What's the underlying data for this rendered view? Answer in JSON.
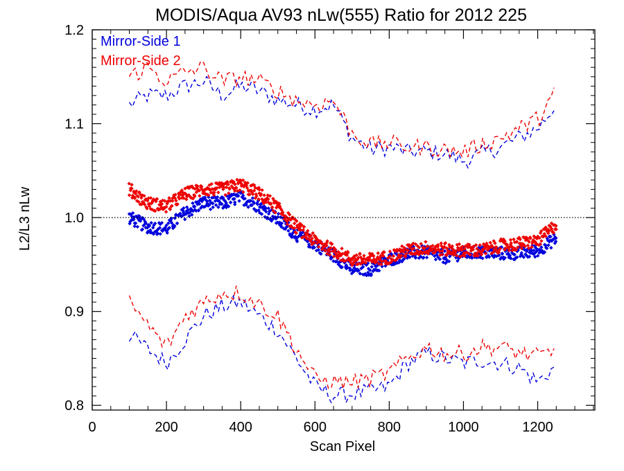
{
  "chart_data": {
    "type": "scatter",
    "title": "MODIS/Aqua AV93 nLw(555) Ratio for 2012 225",
    "xlabel": "Scan Pixel",
    "ylabel": "L2/L3 nLw",
    "xlim": [
      0,
      1354
    ],
    "ylim": [
      0.795,
      1.2
    ],
    "xticks": [
      0,
      200,
      400,
      600,
      800,
      1000,
      1200
    ],
    "yticks": [
      0.8,
      0.9,
      1.0,
      1.1,
      1.2
    ],
    "xtick_labels": [
      "0",
      "200",
      "400",
      "600",
      "800",
      "1000",
      "1200"
    ],
    "ytick_labels": [
      "0.8",
      "0.9",
      "1.0",
      "1.1",
      "1.2"
    ],
    "reference_line": 1.0,
    "legend_position": "top-left",
    "colors": {
      "ms1": "#0000dd",
      "ms2": "#ee0000",
      "axis": "#000000"
    },
    "series": [
      {
        "name": "Mirror-Side 1",
        "color": "#0000dd",
        "x": [
          100,
          150,
          200,
          250,
          300,
          350,
          400,
          450,
          500,
          550,
          600,
          650,
          700,
          750,
          800,
          850,
          900,
          950,
          1000,
          1050,
          1100,
          1150,
          1200,
          1250
        ],
        "mean": [
          1.0,
          0.99,
          0.988,
          1.005,
          1.016,
          1.015,
          1.022,
          1.012,
          0.998,
          0.982,
          0.972,
          0.96,
          0.945,
          0.945,
          0.955,
          0.962,
          0.963,
          0.958,
          0.962,
          0.963,
          0.962,
          0.962,
          0.965,
          0.978
        ],
        "upper": [
          1.12,
          1.13,
          1.13,
          1.14,
          1.145,
          1.13,
          1.14,
          1.135,
          1.125,
          1.12,
          1.115,
          1.12,
          1.085,
          1.072,
          1.075,
          1.07,
          1.07,
          1.068,
          1.06,
          1.068,
          1.075,
          1.085,
          1.095,
          1.12
        ],
        "lower": [
          0.875,
          0.86,
          0.845,
          0.87,
          0.895,
          0.905,
          0.91,
          0.895,
          0.88,
          0.85,
          0.82,
          0.81,
          0.812,
          0.815,
          0.82,
          0.845,
          0.855,
          0.85,
          0.845,
          0.848,
          0.845,
          0.84,
          0.825,
          0.842
        ]
      },
      {
        "name": "Mirror-Side 2",
        "color": "#ee0000",
        "x": [
          100,
          150,
          200,
          250,
          300,
          350,
          400,
          450,
          500,
          550,
          600,
          650,
          700,
          750,
          800,
          850,
          900,
          950,
          1000,
          1050,
          1100,
          1150,
          1200,
          1250
        ],
        "mean": [
          1.03,
          1.015,
          1.012,
          1.025,
          1.03,
          1.03,
          1.035,
          1.025,
          1.01,
          0.99,
          0.975,
          0.965,
          0.955,
          0.955,
          0.958,
          0.965,
          0.968,
          0.966,
          0.965,
          0.965,
          0.97,
          0.972,
          0.975,
          0.993
        ],
        "upper": [
          1.15,
          1.16,
          1.145,
          1.155,
          1.16,
          1.145,
          1.15,
          1.145,
          1.135,
          1.125,
          1.12,
          1.125,
          1.09,
          1.078,
          1.08,
          1.075,
          1.075,
          1.072,
          1.07,
          1.078,
          1.085,
          1.095,
          1.105,
          1.135
        ],
        "lower": [
          0.91,
          0.885,
          0.862,
          0.895,
          0.91,
          0.92,
          0.92,
          0.908,
          0.895,
          0.86,
          0.828,
          0.825,
          0.825,
          0.828,
          0.835,
          0.85,
          0.862,
          0.855,
          0.855,
          0.862,
          0.862,
          0.856,
          0.852,
          0.858
        ]
      }
    ]
  }
}
